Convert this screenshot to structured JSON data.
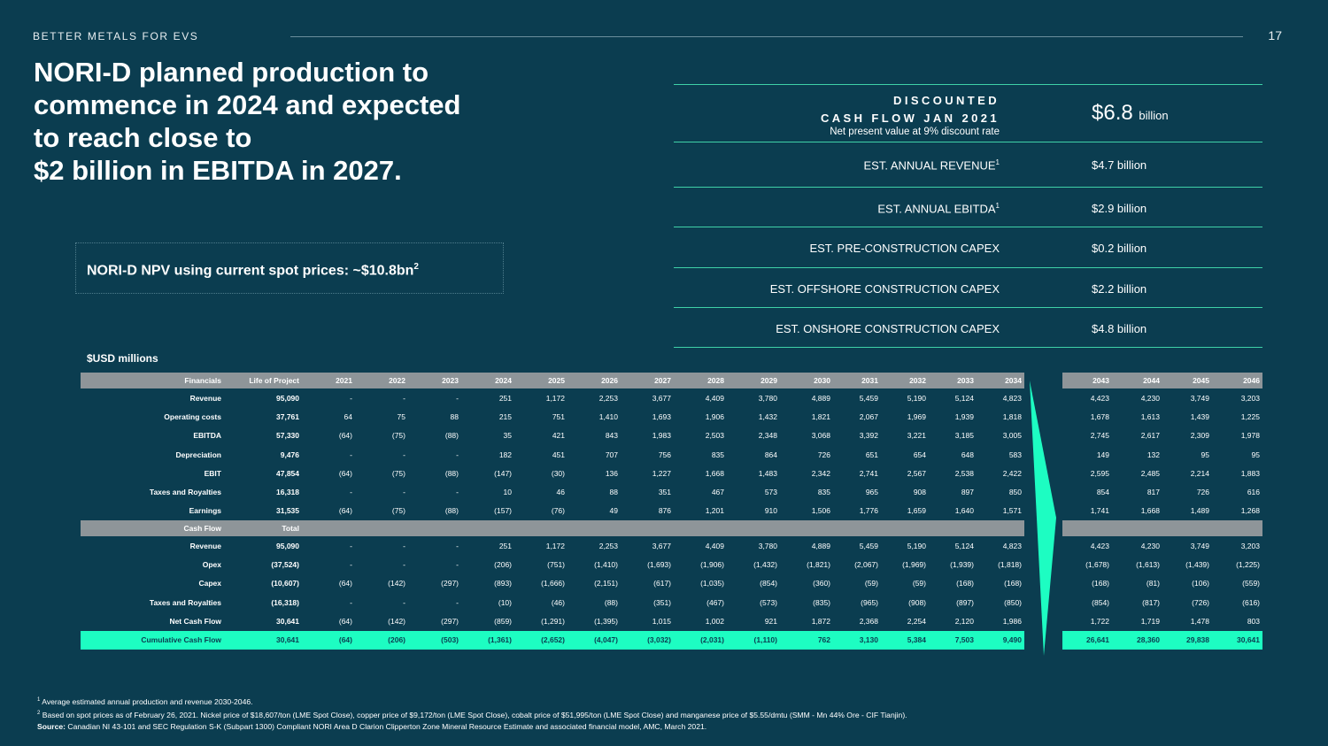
{
  "header": {
    "brand": "BETTER METALS FOR EVS",
    "page_number": "17"
  },
  "headline": [
    "NORI-D planned production to",
    "commence in 2024 and expected",
    "to reach close to",
    "$2 billion in EBITDA in 2027."
  ],
  "npv_box": {
    "text": "NORI-D NPV using current spot prices: ~$10.8bn",
    "sup": "2"
  },
  "dcf": {
    "title_line1": "DISCOUNTED",
    "title_line2": "CASH FLOW JAN 2021",
    "subtitle": "Net present value at 9% discount rate",
    "value": "$6.8",
    "unit": "billion"
  },
  "kpis": [
    {
      "label": "EST. ANNUAL REVENUE",
      "sup": "1",
      "value": "$4.7 billion"
    },
    {
      "label": "EST. ANNUAL EBITDA",
      "sup": "1",
      "value": "$2.9 billion"
    },
    {
      "label": "EST. PRE-CONSTRUCTION CAPEX",
      "sup": "",
      "value": "$0.2 billion"
    },
    {
      "label": "EST. OFFSHORE CONSTRUCTION CAPEX",
      "sup": "",
      "value": "$2.2 billion"
    },
    {
      "label": "EST. ONSHORE CONSTRUCTION CAPEX",
      "sup": "",
      "value": "$4.8 billion"
    }
  ],
  "units_label": "$USD millions",
  "table": {
    "header_label": "Financials",
    "lop_label": "Life of Project",
    "years_left": [
      "2021",
      "2022",
      "2023",
      "2024",
      "2025",
      "2026",
      "2027",
      "2028",
      "2029",
      "2030",
      "2031",
      "2032",
      "2033",
      "2034"
    ],
    "years_right": [
      "2043",
      "2044",
      "2045",
      "2046"
    ],
    "financial_rows": [
      {
        "label": "Revenue",
        "lop": "95,090",
        "left": [
          "-",
          "-",
          "-",
          "251",
          "1,172",
          "2,253",
          "3,677",
          "4,409",
          "3,780",
          "4,889",
          "5,459",
          "5,190",
          "5,124",
          "4,823"
        ],
        "right": [
          "4,423",
          "4,230",
          "3,749",
          "3,203"
        ]
      },
      {
        "label": "Operating costs",
        "lop": "37,761",
        "left": [
          "64",
          "75",
          "88",
          "215",
          "751",
          "1,410",
          "1,693",
          "1,906",
          "1,432",
          "1,821",
          "2,067",
          "1,969",
          "1,939",
          "1,818"
        ],
        "right": [
          "1,678",
          "1,613",
          "1,439",
          "1,225"
        ]
      },
      {
        "label": "EBITDA",
        "lop": "57,330",
        "left": [
          "(64)",
          "(75)",
          "(88)",
          "35",
          "421",
          "843",
          "1,983",
          "2,503",
          "2,348",
          "3,068",
          "3,392",
          "3,221",
          "3,185",
          "3,005"
        ],
        "right": [
          "2,745",
          "2,617",
          "2,309",
          "1,978"
        ]
      },
      {
        "label": "Depreciation",
        "lop": "9,476",
        "left": [
          "-",
          "-",
          "-",
          "182",
          "451",
          "707",
          "756",
          "835",
          "864",
          "726",
          "651",
          "654",
          "648",
          "583"
        ],
        "right": [
          "149",
          "132",
          "95",
          "95"
        ]
      },
      {
        "label": "EBIT",
        "lop": "47,854",
        "left": [
          "(64)",
          "(75)",
          "(88)",
          "(147)",
          "(30)",
          "136",
          "1,227",
          "1,668",
          "1,483",
          "2,342",
          "2,741",
          "2,567",
          "2,538",
          "2,422"
        ],
        "right": [
          "2,595",
          "2,485",
          "2,214",
          "1,883"
        ]
      },
      {
        "label": "Taxes and Royalties",
        "lop": "16,318",
        "left": [
          "-",
          "-",
          "-",
          "10",
          "46",
          "88",
          "351",
          "467",
          "573",
          "835",
          "965",
          "908",
          "897",
          "850"
        ],
        "right": [
          "854",
          "817",
          "726",
          "616"
        ]
      },
      {
        "label": "Earnings",
        "lop": "31,535",
        "left": [
          "(64)",
          "(75)",
          "(88)",
          "(157)",
          "(76)",
          "49",
          "876",
          "1,201",
          "910",
          "1,506",
          "1,776",
          "1,659",
          "1,640",
          "1,571"
        ],
        "right": [
          "1,741",
          "1,668",
          "1,489",
          "1,268"
        ]
      }
    ],
    "cashflow_label": "Cash Flow",
    "cashflow_total_label": "Total",
    "cashflow_rows": [
      {
        "label": "Revenue",
        "lop": "95,090",
        "left": [
          "-",
          "-",
          "-",
          "251",
          "1,172",
          "2,253",
          "3,677",
          "4,409",
          "3,780",
          "4,889",
          "5,459",
          "5,190",
          "5,124",
          "4,823"
        ],
        "right": [
          "4,423",
          "4,230",
          "3,749",
          "3,203"
        ]
      },
      {
        "label": "Opex",
        "lop": "(37,524)",
        "left": [
          "-",
          "-",
          "-",
          "(206)",
          "(751)",
          "(1,410)",
          "(1,693)",
          "(1,906)",
          "(1,432)",
          "(1,821)",
          "(2,067)",
          "(1,969)",
          "(1,939)",
          "(1,818)"
        ],
        "right": [
          "(1,678)",
          "(1,613)",
          "(1,439)",
          "(1,225)"
        ]
      },
      {
        "label": "Capex",
        "lop": "(10,607)",
        "left": [
          "(64)",
          "(142)",
          "(297)",
          "(893)",
          "(1,666)",
          "(2,151)",
          "(617)",
          "(1,035)",
          "(854)",
          "(360)",
          "(59)",
          "(59)",
          "(168)",
          "(168)"
        ],
        "right": [
          "(168)",
          "(81)",
          "(106)",
          "(559)"
        ]
      },
      {
        "label": "Taxes and Royalties",
        "lop": "(16,318)",
        "left": [
          "-",
          "-",
          "-",
          "(10)",
          "(46)",
          "(88)",
          "(351)",
          "(467)",
          "(573)",
          "(835)",
          "(965)",
          "(908)",
          "(897)",
          "(850)"
        ],
        "right": [
          "(854)",
          "(817)",
          "(726)",
          "(616)"
        ]
      },
      {
        "label": "Net Cash Flow",
        "lop": "30,641",
        "left": [
          "(64)",
          "(142)",
          "(297)",
          "(859)",
          "(1,291)",
          "(1,395)",
          "1,015",
          "1,002",
          "921",
          "1,872",
          "2,368",
          "2,254",
          "2,120",
          "1,986"
        ],
        "right": [
          "1,722",
          "1,719",
          "1,478",
          "803"
        ]
      }
    ],
    "cumulative_row": {
      "label": "Cumulative Cash Flow",
      "lop": "30,641",
      "left": [
        "(64)",
        "(206)",
        "(503)",
        "(1,361)",
        "(2,652)",
        "(4,047)",
        "(3,032)",
        "(2,031)",
        "(1,110)",
        "762",
        "3,130",
        "5,384",
        "7,503",
        "9,490"
      ],
      "right": [
        "26,641",
        "28,360",
        "29,838",
        "30,641"
      ]
    }
  },
  "footnotes": {
    "note1_sup": "1",
    "note1": "Average estimated annual production and revenue 2030-2046.",
    "note2_sup": "2",
    "note2": "Based on spot prices as of February 26, 2021. Nickel price of $18,607/ton (LME Spot Close), copper price of $9,172/ton (LME Spot Close), cobalt price of $51,995/ton (LME Spot Close) and manganese price of $5.55/dmtu (SMM - Mn 44% Ore - CIF Tianjin).",
    "source_label": "Source:",
    "source": "Canadian NI 43-101 and SEC Regulation S-K (Subpart 1300) Compliant NORI Area D Clarion Clipperton Zone Mineral Resource Estimate and associated financial model, AMC, March 2021."
  },
  "colors": {
    "background": "#0b3d50",
    "accent": "#1dfdc2",
    "header_gray": "#8e9599",
    "rule": "#3fd1a8"
  }
}
